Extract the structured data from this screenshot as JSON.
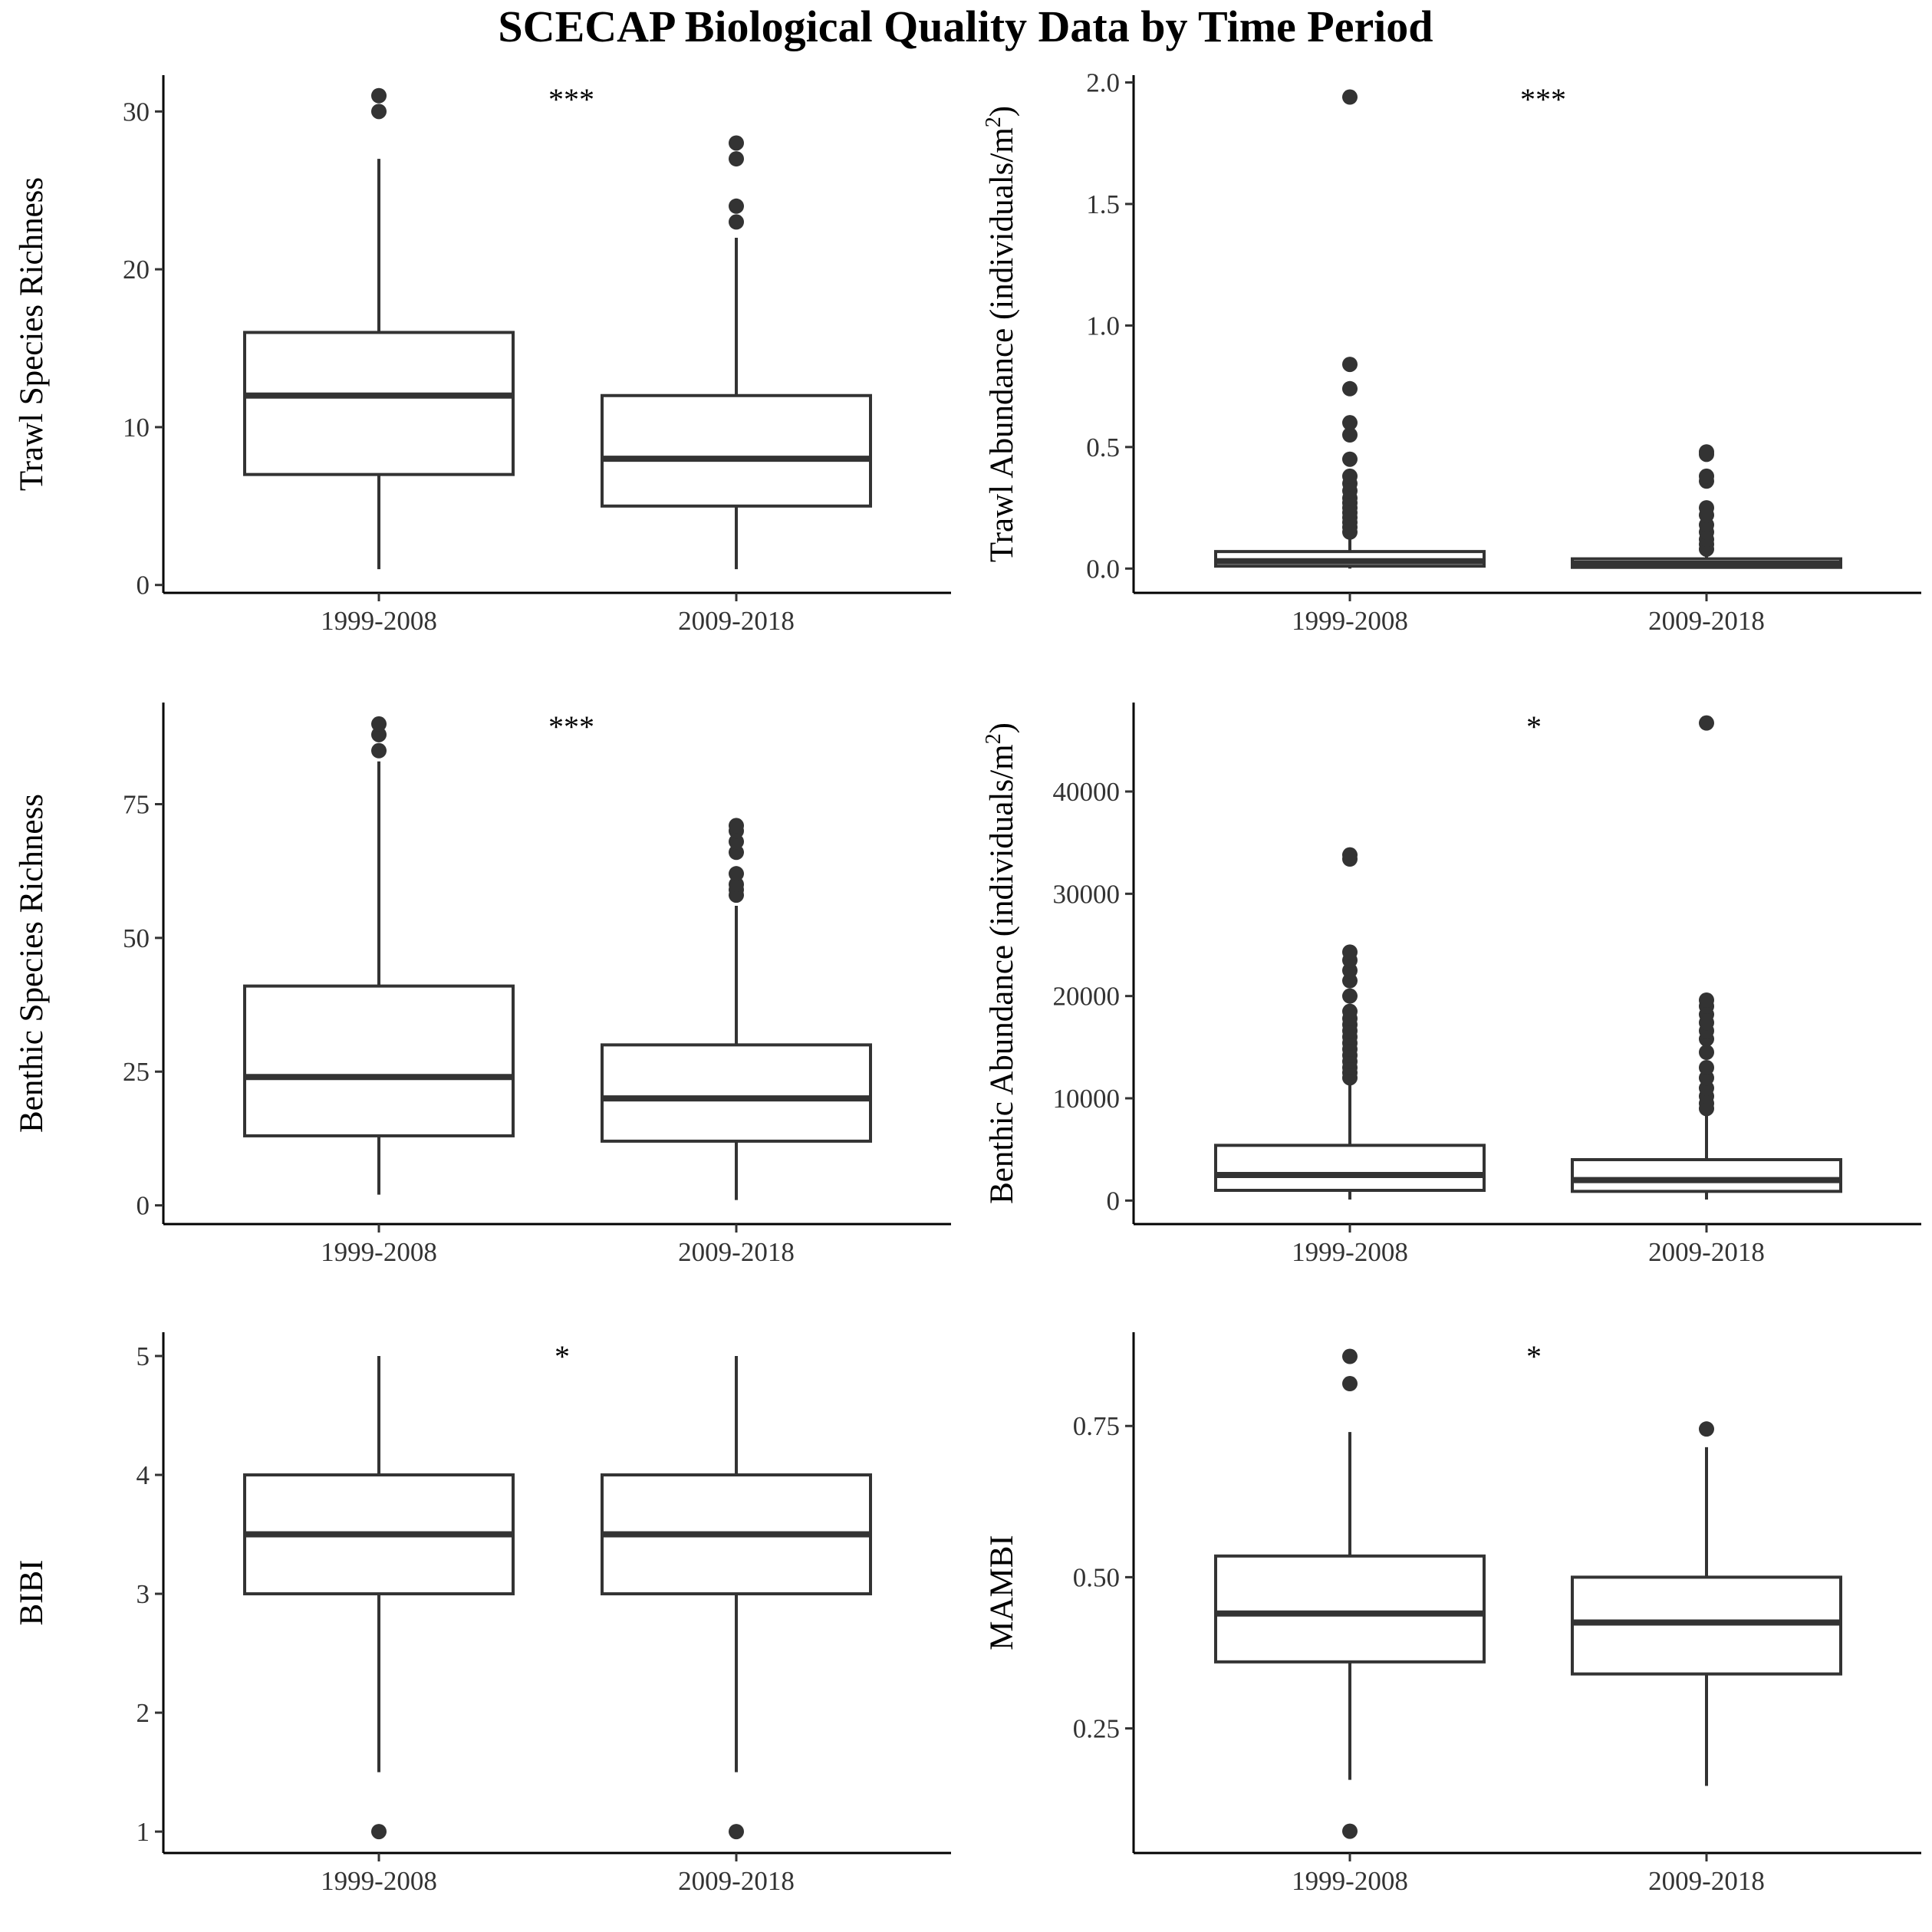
{
  "title": "SCECAP Biological Quality Data by Time Period",
  "chart_data": [
    {
      "type": "box",
      "ylabel": "Trawl Species Richness",
      "categories": [
        "1999-2008",
        "2009-2018"
      ],
      "ylim": [
        -0.5,
        32.3
      ],
      "yticks": [
        0,
        10,
        20,
        30
      ],
      "yticklabels": [
        "0",
        "10",
        "20",
        "30"
      ],
      "significance": "***",
      "boxes": [
        {
          "category": "1999-2008",
          "q1": 7,
          "median": 12,
          "q3": 16,
          "whisker_low": 1,
          "whisker_high": 27,
          "outliers": [
            30,
            31
          ]
        },
        {
          "category": "2009-2018",
          "q1": 5,
          "median": 8,
          "q3": 12,
          "whisker_low": 1,
          "whisker_high": 22,
          "outliers": [
            23,
            24,
            27,
            28
          ]
        }
      ]
    },
    {
      "type": "box",
      "ylabel": "Trawl Abundance (individuals/m²)",
      "ylabel_main": "Trawl Abundance (individuals/m",
      "ylabel_sup": "2",
      "ylabel_tail": ")",
      "categories": [
        "1999-2008",
        "2009-2018"
      ],
      "ylim": [
        -0.1,
        2.03
      ],
      "yticks": [
        0,
        0.5,
        1,
        1.5,
        2
      ],
      "yticklabels": [
        "0.0",
        "0.5",
        "1.0",
        "1.5",
        "2.0"
      ],
      "significance": "***",
      "boxes": [
        {
          "category": "1999-2008",
          "q1": 0.01,
          "median": 0.03,
          "q3": 0.07,
          "whisker_low": 0.0,
          "whisker_high": 0.14,
          "outliers": [
            0.15,
            0.17,
            0.19,
            0.21,
            0.23,
            0.25,
            0.27,
            0.29,
            0.32,
            0.35,
            0.38,
            0.45,
            0.55,
            0.6,
            0.74,
            0.84,
            1.94
          ]
        },
        {
          "category": "2009-2018",
          "q1": 0.005,
          "median": 0.02,
          "q3": 0.04,
          "whisker_low": 0.0,
          "whisker_high": 0.07,
          "outliers": [
            0.08,
            0.1,
            0.12,
            0.15,
            0.18,
            0.22,
            0.25,
            0.36,
            0.38,
            0.47,
            0.48
          ]
        }
      ]
    },
    {
      "type": "box",
      "ylabel": "Benthic Species Richness",
      "categories": [
        "1999-2008",
        "2009-2018"
      ],
      "ylim": [
        -3.5,
        94
      ],
      "yticks": [
        0,
        25,
        50,
        75
      ],
      "yticklabels": [
        "0",
        "25",
        "50",
        "75"
      ],
      "significance": "***",
      "boxes": [
        {
          "category": "1999-2008",
          "q1": 13,
          "median": 24,
          "q3": 41,
          "whisker_low": 2,
          "whisker_high": 83,
          "outliers": [
            85,
            88,
            90
          ]
        },
        {
          "category": "2009-2018",
          "q1": 12,
          "median": 20,
          "q3": 30,
          "whisker_low": 1,
          "whisker_high": 56,
          "outliers": [
            58,
            59,
            60,
            62,
            66,
            68,
            70,
            71
          ]
        }
      ]
    },
    {
      "type": "box",
      "ylabel": "Benthic Abundance (individuals/m²)",
      "ylabel_main": "Benthic Abundance (individuals/m",
      "ylabel_sup": "2",
      "ylabel_tail": ")",
      "categories": [
        "1999-2008",
        "2009-2018"
      ],
      "ylim": [
        -2300,
        48700
      ],
      "yticks": [
        0,
        10000,
        20000,
        30000,
        40000
      ],
      "yticklabels": [
        "0",
        "10000",
        "20000",
        "30000",
        "40000"
      ],
      "significance": "*",
      "boxes": [
        {
          "category": "1999-2008",
          "q1": 1000,
          "median": 2500,
          "q3": 5400,
          "whisker_low": 100,
          "whisker_high": 11800,
          "outliers": [
            12000,
            12500,
            13000,
            13600,
            14200,
            14800,
            15400,
            16000,
            16600,
            17200,
            17800,
            18500,
            20000,
            21500,
            22500,
            23500,
            24300,
            33400,
            33800
          ]
        },
        {
          "category": "2009-2018",
          "q1": 900,
          "median": 2000,
          "q3": 4000,
          "whisker_low": 100,
          "whisker_high": 8700,
          "outliers": [
            9000,
            9500,
            10200,
            11000,
            12000,
            13000,
            14500,
            15800,
            16600,
            17400,
            18200,
            19000,
            19600,
            46700
          ]
        }
      ]
    },
    {
      "type": "box",
      "ylabel": "BIBI",
      "categories": [
        "1999-2008",
        "2009-2018"
      ],
      "ylim": [
        0.82,
        5.2
      ],
      "yticks": [
        1,
        2,
        3,
        4,
        5
      ],
      "yticklabels": [
        "1",
        "2",
        "3",
        "4",
        "5"
      ],
      "significance": "*",
      "boxes": [
        {
          "category": "1999-2008",
          "q1": 3,
          "median": 3.5,
          "q3": 4,
          "whisker_low": 1.5,
          "whisker_high": 5,
          "outliers": [
            1
          ]
        },
        {
          "category": "2009-2018",
          "q1": 3,
          "median": 3.5,
          "q3": 4,
          "whisker_low": 1.5,
          "whisker_high": 5,
          "outliers": [
            1
          ]
        }
      ]
    },
    {
      "type": "box",
      "ylabel": "MAMBI",
      "categories": [
        "1999-2008",
        "2009-2018"
      ],
      "ylim": [
        0.044,
        0.905
      ],
      "yticks": [
        0.25,
        0.5,
        0.75
      ],
      "yticklabels": [
        "0.25",
        "0.50",
        "0.75"
      ],
      "significance": "*",
      "boxes": [
        {
          "category": "1999-2008",
          "q1": 0.36,
          "median": 0.44,
          "q3": 0.535,
          "whisker_low": 0.165,
          "whisker_high": 0.74,
          "outliers": [
            0.08,
            0.82,
            0.865
          ]
        },
        {
          "category": "2009-2018",
          "q1": 0.34,
          "median": 0.425,
          "q3": 0.5,
          "whisker_low": 0.155,
          "whisker_high": 0.715,
          "outliers": [
            0.745
          ]
        }
      ]
    }
  ]
}
